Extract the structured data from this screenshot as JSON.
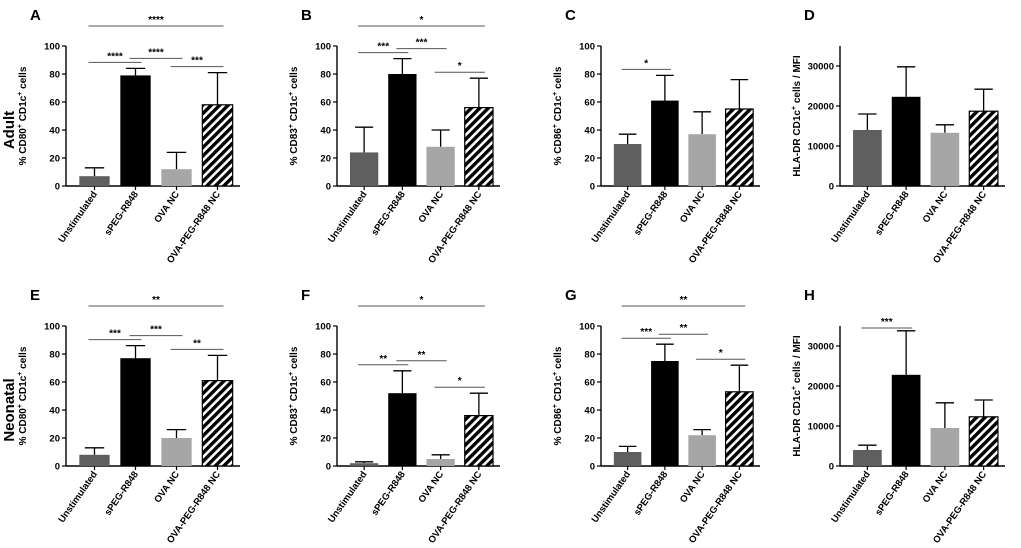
{
  "figure": {
    "row_labels": [
      "Adult",
      "Neonatal"
    ],
    "colors": {
      "Unstimulated": "#5f5f5f",
      "sPEG-R848": "#000000",
      "OVA NC": "#a6a6a6",
      "OVA-PEG-R848 NC": "hatch"
    }
  },
  "chart_data": [
    {
      "panel": "A",
      "type": "bar",
      "row": "Adult",
      "ylabel": {
        "base": "% CD80",
        "s1": "+",
        "mid": " CD1c",
        "s2": "+",
        "end": " cells"
      },
      "ylim": [
        0,
        100
      ],
      "yticks": [
        "0",
        "20",
        "40",
        "60",
        "80",
        "100"
      ],
      "categories": [
        "Unstimulated",
        "sPEG-R848",
        "OVA NC",
        "OVA-PEG-R848 NC"
      ],
      "values": [
        7,
        79,
        12,
        58
      ],
      "errors": [
        6,
        5,
        12,
        23
      ],
      "significance": [
        {
          "a": 0,
          "b": 1,
          "label": "****"
        },
        {
          "a": 1,
          "b": 2,
          "label": "****"
        },
        {
          "a": 2,
          "b": 3,
          "label": "***"
        },
        {
          "a": 0,
          "b": 3,
          "label": "****"
        }
      ]
    },
    {
      "panel": "B",
      "type": "bar",
      "row": "Adult",
      "ylabel": {
        "base": "% CD83",
        "s1": "+",
        "mid": " CD1c",
        "s2": "+",
        "end": " cells"
      },
      "ylim": [
        0,
        100
      ],
      "yticks": [
        "0",
        "20",
        "40",
        "60",
        "80",
        "100"
      ],
      "categories": [
        "Unstimulated",
        "sPEG-R848",
        "OVA NC",
        "OVA-PEG-R848 NC"
      ],
      "values": [
        24,
        80,
        28,
        56
      ],
      "errors": [
        18,
        11,
        12,
        21
      ],
      "significance": [
        {
          "a": 0,
          "b": 1,
          "label": "***"
        },
        {
          "a": 1,
          "b": 2,
          "label": "***"
        },
        {
          "a": 2,
          "b": 3,
          "label": "*"
        },
        {
          "a": 0,
          "b": 3,
          "label": "*"
        }
      ]
    },
    {
      "panel": "C",
      "type": "bar",
      "row": "Adult",
      "ylabel": {
        "base": "% CD86",
        "s1": "+",
        "mid": " CD1c",
        "s2": "+",
        "end": " cells"
      },
      "ylim": [
        0,
        100
      ],
      "yticks": [
        "0",
        "20",
        "40",
        "60",
        "80",
        "100"
      ],
      "categories": [
        "Unstimulated",
        "sPEG-R848",
        "OVA NC",
        "OVA-PEG-R848 NC"
      ],
      "values": [
        30,
        61,
        37,
        55
      ],
      "errors": [
        7,
        18,
        16,
        21
      ],
      "significance": [
        {
          "a": 0,
          "b": 1,
          "label": "*"
        }
      ]
    },
    {
      "panel": "D",
      "type": "bar",
      "row": "Adult",
      "ylabel": {
        "base": "HLA-DR CD1c",
        "s1": "+",
        "mid": " cells / MFI",
        "s2": "",
        "end": ""
      },
      "ylim": [
        0,
        35000
      ],
      "yticks": [
        "0",
        "10000",
        "20000",
        "30000"
      ],
      "categories": [
        "Unstimulated",
        "sPEG-R848",
        "OVA NC",
        "OVA-PEG-R848 NC"
      ],
      "values": [
        14000,
        22300,
        13300,
        18700
      ],
      "errors": [
        4000,
        7500,
        2000,
        5500
      ],
      "significance": []
    },
    {
      "panel": "E",
      "type": "bar",
      "row": "Neonatal",
      "ylabel": {
        "base": "% CD80",
        "s1": "+",
        "mid": " CD1c",
        "s2": "+",
        "end": " cells"
      },
      "ylim": [
        0,
        100
      ],
      "yticks": [
        "0",
        "20",
        "40",
        "60",
        "80",
        "100"
      ],
      "categories": [
        "Unstimulated",
        "sPEG-R848",
        "OVA NC",
        "OVA-PEG-R848 NC"
      ],
      "values": [
        8,
        77,
        20,
        61
      ],
      "errors": [
        5,
        9,
        6,
        18
      ],
      "significance": [
        {
          "a": 0,
          "b": 1,
          "label": "***"
        },
        {
          "a": 1,
          "b": 2,
          "label": "***"
        },
        {
          "a": 2,
          "b": 3,
          "label": "**"
        },
        {
          "a": 0,
          "b": 3,
          "label": "**"
        }
      ]
    },
    {
      "panel": "F",
      "type": "bar",
      "row": "Neonatal",
      "ylabel": {
        "base": "% CD83",
        "s1": "+",
        "mid": " CD1c",
        "s2": "+",
        "end": " cells"
      },
      "ylim": [
        0,
        100
      ],
      "yticks": [
        "0",
        "20",
        "40",
        "60",
        "80",
        "100"
      ],
      "categories": [
        "Unstimulated",
        "sPEG-R848",
        "OVA NC",
        "OVA-PEG-R848 NC"
      ],
      "values": [
        2,
        52,
        5,
        36
      ],
      "errors": [
        1,
        16,
        3,
        16
      ],
      "significance": [
        {
          "a": 0,
          "b": 1,
          "label": "**"
        },
        {
          "a": 1,
          "b": 2,
          "label": "**"
        },
        {
          "a": 2,
          "b": 3,
          "label": "*"
        },
        {
          "a": 0,
          "b": 3,
          "label": "*"
        }
      ]
    },
    {
      "panel": "G",
      "type": "bar",
      "row": "Neonatal",
      "ylabel": {
        "base": "% CD86",
        "s1": "+",
        "mid": " CD1c",
        "s2": "+",
        "end": " cells"
      },
      "ylim": [
        0,
        100
      ],
      "yticks": [
        "0",
        "20",
        "40",
        "60",
        "80",
        "100"
      ],
      "categories": [
        "Unstimulated",
        "sPEG-R848",
        "OVA NC",
        "OVA-PEG-R848 NC"
      ],
      "values": [
        10,
        75,
        22,
        53
      ],
      "errors": [
        4,
        12,
        4,
        19
      ],
      "significance": [
        {
          "a": 0,
          "b": 1,
          "label": "***"
        },
        {
          "a": 1,
          "b": 2,
          "label": "**"
        },
        {
          "a": 2,
          "b": 3,
          "label": "*"
        },
        {
          "a": 0,
          "b": 3,
          "label": "**"
        }
      ]
    },
    {
      "panel": "H",
      "type": "bar",
      "row": "Neonatal",
      "ylabel": {
        "base": "HLA-DR CD1c",
        "s1": "+",
        "mid": " cells / MFI",
        "s2": "",
        "end": ""
      },
      "ylim": [
        0,
        35000
      ],
      "yticks": [
        "0",
        "10000",
        "20000",
        "30000"
      ],
      "categories": [
        "Unstimulated",
        "sPEG-R848",
        "OVA NC",
        "OVA-PEG-R848 NC"
      ],
      "values": [
        4000,
        22800,
        9500,
        12300
      ],
      "errors": [
        1200,
        11000,
        6300,
        4200
      ],
      "significance": [
        {
          "a": 0,
          "b": 1,
          "label": "***"
        }
      ]
    }
  ]
}
